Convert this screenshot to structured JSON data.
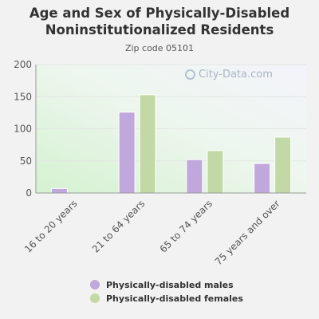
{
  "title": "Age and Sex of Physically-Disabled Noninstitutionalized Residents",
  "subtitle": "Zip code 05101",
  "watermark": "City-Data.com",
  "chart_data": {
    "type": "bar",
    "categories": [
      "16 to 20 years",
      "21 to 64 years",
      "65 to 74 years",
      "75 years and over"
    ],
    "series": [
      {
        "name": "Physically-disabled males",
        "values": [
          7,
          126,
          52,
          46
        ],
        "color": "#c0a8dc"
      },
      {
        "name": "Physically-disabled females",
        "values": [
          0,
          153,
          66,
          87
        ],
        "color": "#c3d9a5"
      }
    ],
    "yticks": [
      0,
      50,
      100,
      150,
      200
    ],
    "ylim": [
      0,
      200
    ],
    "grid": true,
    "legend": "bottom"
  }
}
